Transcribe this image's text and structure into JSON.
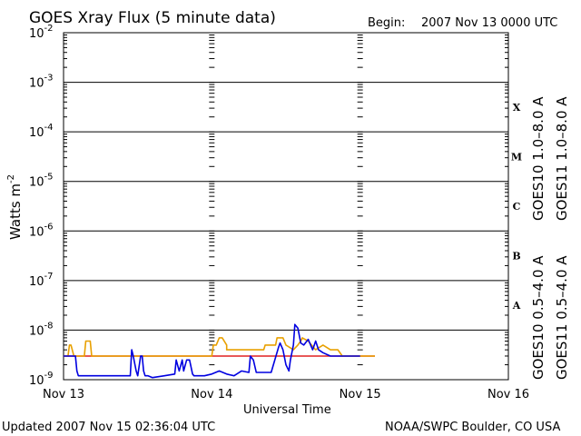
{
  "chart_data": {
    "type": "line",
    "title": "GOES Xray Flux (5 minute data)",
    "begin_label": "Begin:",
    "begin_value": "2007 Nov 13 0000 UTC",
    "ylabel_base": "Watts m",
    "ylabel_exp": "-2",
    "xlabel": "Universal Time",
    "y_scale": "log",
    "ylim": [
      1e-09,
      0.01
    ],
    "xlim_days": [
      0,
      3
    ],
    "yticks": [
      {
        "base": "10",
        "exp": "-2",
        "value": 0.01
      },
      {
        "base": "10",
        "exp": "-3",
        "value": 0.001
      },
      {
        "base": "10",
        "exp": "-4",
        "value": 0.0001
      },
      {
        "base": "10",
        "exp": "-5",
        "value": 1e-05
      },
      {
        "base": "10",
        "exp": "-6",
        "value": 1e-06
      },
      {
        "base": "10",
        "exp": "-7",
        "value": 1e-07
      },
      {
        "base": "10",
        "exp": "-8",
        "value": 1e-08
      },
      {
        "base": "10",
        "exp": "-9",
        "value": 1e-09
      }
    ],
    "xticks": [
      {
        "label": "Nov 13",
        "day": 0
      },
      {
        "label": "Nov 14",
        "day": 1
      },
      {
        "label": "Nov 15",
        "day": 2
      },
      {
        "label": "Nov 16",
        "day": 3
      }
    ],
    "flare_classes": [
      {
        "label": "X",
        "decade": -4
      },
      {
        "label": "M",
        "decade": -5
      },
      {
        "label": "C",
        "decade": -6
      },
      {
        "label": "B",
        "decade": -7
      },
      {
        "label": "A",
        "decade": -8
      }
    ],
    "legend_long": [
      {
        "name": "GOES10 1.0–8.0 A",
        "color": "#7030a0"
      },
      {
        "name": "GOES11 1.0–8.0 A",
        "color": "#e02020"
      }
    ],
    "legend_short": [
      {
        "name": "GOES10 0.5–4.0 A",
        "color": "#e8a000"
      },
      {
        "name": "GOES11 0.5–4.0 A",
        "color": "#0000e0"
      }
    ],
    "series": [
      {
        "name": "GOES11 1.0–8.0 A",
        "color": "#e02020",
        "x": [
          0,
          2.1
        ],
        "y": [
          3e-09,
          3e-09
        ]
      },
      {
        "name": "GOES10 0.5–4.0 A",
        "color": "#e8a000",
        "x": [
          0,
          0.03,
          0.04,
          0.05,
          0.07,
          0.08,
          0.1,
          0.14,
          0.15,
          0.18,
          0.19,
          0.25,
          0.5,
          1.0,
          1.01,
          1.03,
          1.05,
          1.07,
          1.1,
          1.1,
          1.2,
          1.35,
          1.36,
          1.43,
          1.44,
          1.48,
          1.5,
          1.55,
          1.58,
          1.6,
          1.61,
          1.65,
          1.7,
          1.75,
          1.8,
          1.85,
          1.88,
          1.95,
          2.1
        ],
        "y": [
          3e-09,
          3e-09,
          5e-09,
          5e-09,
          3e-09,
          3e-09,
          3e-09,
          3e-09,
          6e-09,
          6e-09,
          3e-09,
          3e-09,
          3e-09,
          3e-09,
          5e-09,
          5e-09,
          7e-09,
          7e-09,
          5e-09,
          4e-09,
          4e-09,
          4e-09,
          5e-09,
          5e-09,
          7e-09,
          7e-09,
          5e-09,
          4e-09,
          5e-09,
          6e-09,
          7e-09,
          6e-09,
          4e-09,
          5e-09,
          4e-09,
          4e-09,
          3e-09,
          3e-09,
          3e-09
        ]
      },
      {
        "name": "GOES11 0.5–4.0 A",
        "color": "#0000e0",
        "x": [
          0,
          0.08,
          0.09,
          0.1,
          0.12,
          0.2,
          0.45,
          0.46,
          0.47,
          0.49,
          0.5,
          0.52,
          0.53,
          0.54,
          0.55,
          0.56,
          0.57,
          0.6,
          0.68,
          0.75,
          0.76,
          0.78,
          0.8,
          0.81,
          0.83,
          0.85,
          0.87,
          0.88,
          0.95,
          1.0,
          1.05,
          1.1,
          1.15,
          1.2,
          1.25,
          1.26,
          1.28,
          1.3,
          1.35,
          1.4,
          1.45,
          1.46,
          1.48,
          1.5,
          1.52,
          1.53,
          1.55,
          1.56,
          1.58,
          1.6,
          1.62,
          1.65,
          1.68,
          1.7,
          1.72,
          1.75,
          1.8,
          1.85,
          1.9,
          2.0
        ],
        "y": [
          3e-09,
          3e-09,
          1.5e-09,
          1.2e-09,
          1.2e-09,
          1.2e-09,
          1.2e-09,
          4e-09,
          3e-09,
          1.5e-09,
          1.2e-09,
          3e-09,
          3e-09,
          1.5e-09,
          1.2e-09,
          1.2e-09,
          1.2e-09,
          1.1e-09,
          1.2e-09,
          1.3e-09,
          2.5e-09,
          1.5e-09,
          2.5e-09,
          1.5e-09,
          2.5e-09,
          2.5e-09,
          1.3e-09,
          1.2e-09,
          1.2e-09,
          1.3e-09,
          1.5e-09,
          1.3e-09,
          1.2e-09,
          1.5e-09,
          1.4e-09,
          3e-09,
          2.5e-09,
          1.4e-09,
          1.4e-09,
          1.4e-09,
          4.5e-09,
          5.5e-09,
          4e-09,
          2e-09,
          1.5e-09,
          2.5e-09,
          5e-09,
          1.3e-08,
          1.1e-08,
          5.5e-09,
          5e-09,
          6.5e-09,
          4e-09,
          6e-09,
          4e-09,
          3.5e-09,
          3e-09,
          3e-09,
          3e-09,
          3e-09
        ]
      }
    ]
  },
  "footer": {
    "updated": "Updated 2007 Nov 15 02:36:04 UTC",
    "source": "NOAA/SWPC Boulder, CO USA"
  }
}
